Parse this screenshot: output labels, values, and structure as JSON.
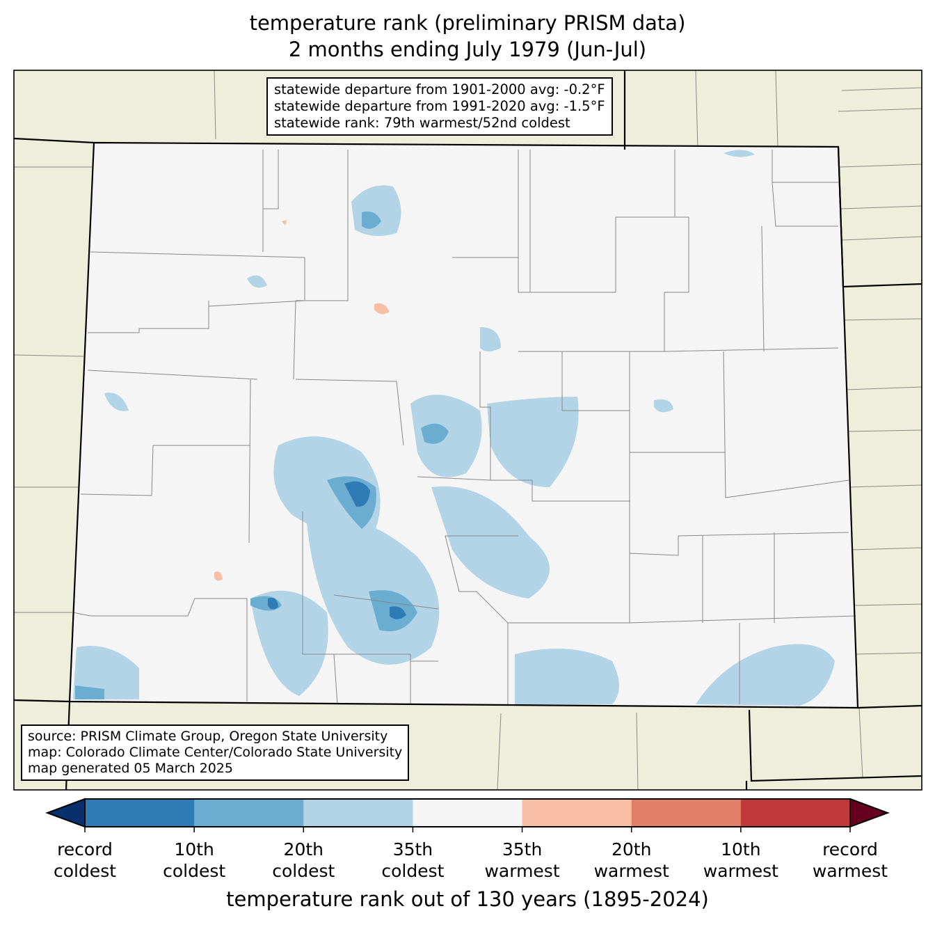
{
  "title": {
    "line1": "temperature rank (preliminary PRISM data)",
    "line2": "2 months ending July 1979 (Jun-Jul)"
  },
  "stats_box": {
    "line1": "statewide departure from 1901-2000 avg: -0.2°F",
    "line2": "statewide departure from 1991-2020 avg: -1.5°F",
    "line3": "statewide rank: 79th warmest/52nd coldest"
  },
  "source_box": {
    "line1": "source: PRISM Climate Group, Oregon State University",
    "line2": "map: Colorado Climate Center/Colorado State University",
    "line3": "map generated 05 March 2025"
  },
  "colorbar": {
    "title": "temperature rank out of 130 years (1895-2024)",
    "extend_colors": {
      "low": "#08306b",
      "high": "#67001f"
    },
    "bins": [
      {
        "color": "#2f7bb6"
      },
      {
        "color": "#6aadd1"
      },
      {
        "color": "#b2d4e6"
      },
      {
        "color": "#f5f5f5"
      },
      {
        "color": "#f8bfa5"
      },
      {
        "color": "#e3806a"
      },
      {
        "color": "#c2393c"
      }
    ],
    "tick_labels": [
      {
        "l1": "record",
        "l2": "coldest"
      },
      {
        "l1": "10th",
        "l2": "coldest"
      },
      {
        "l1": "20th",
        "l2": "coldest"
      },
      {
        "l1": "35th",
        "l2": "coldest"
      },
      {
        "l1": "35th",
        "l2": "warmest"
      },
      {
        "l1": "20th",
        "l2": "warmest"
      },
      {
        "l1": "10th",
        "l2": "warmest"
      },
      {
        "l1": "record",
        "l2": "warmest"
      }
    ]
  },
  "colors": {
    "land_outside": "#efeedb",
    "state_fill": "#f5f5f5"
  }
}
